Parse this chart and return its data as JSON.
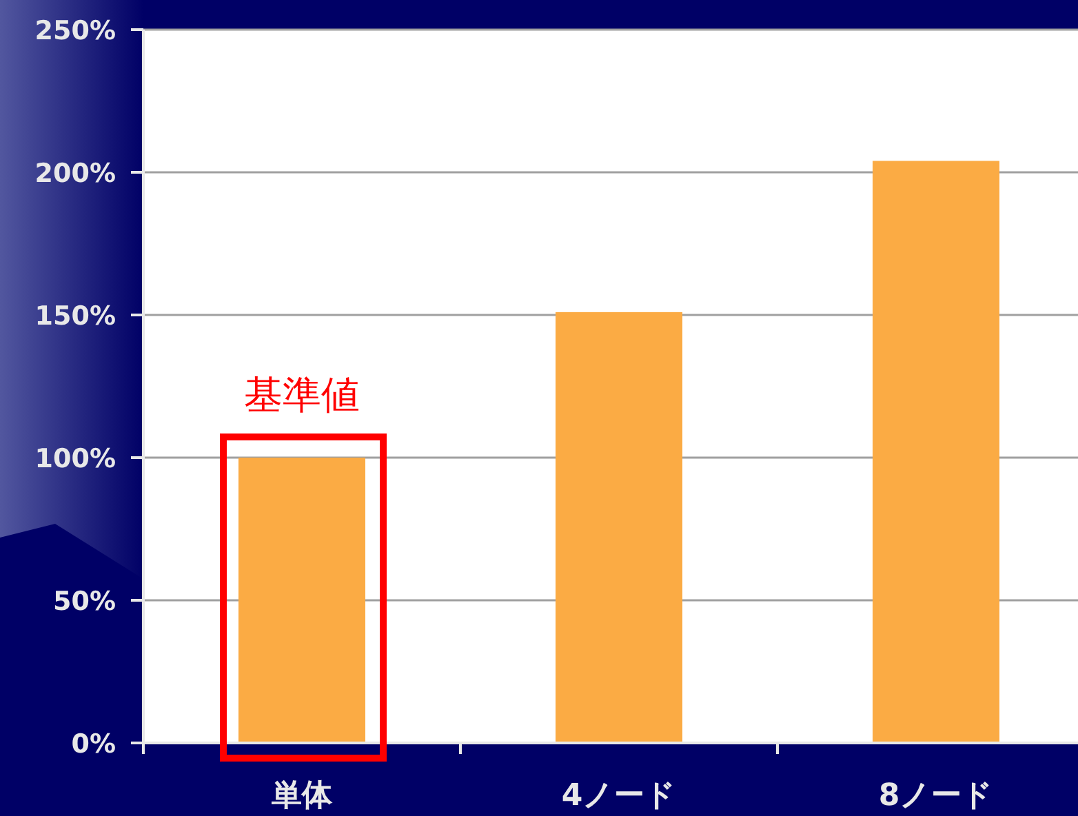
{
  "chart_data": {
    "type": "bar",
    "categories": [
      "単体",
      "4ノード",
      "8ノード"
    ],
    "values": [
      100,
      151,
      204
    ],
    "color": "#fbab44",
    "ylim": [
      0,
      250
    ],
    "yticks": [
      {
        "value": 0,
        "label": "0%"
      },
      {
        "value": 50,
        "label": "50%"
      },
      {
        "value": 100,
        "label": "100%"
      },
      {
        "value": 150,
        "label": "150%"
      },
      {
        "value": 200,
        "label": "200%"
      },
      {
        "value": 250,
        "label": "250%"
      }
    ],
    "grid": "y",
    "annotations": [
      {
        "text": "基準値",
        "x": "単体",
        "y": 100
      }
    ]
  }
}
